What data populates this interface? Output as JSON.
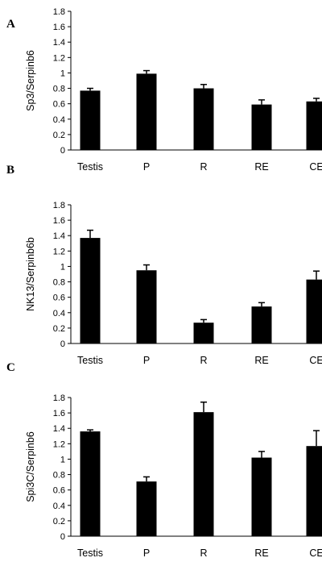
{
  "chart_data": [
    {
      "panel": "A",
      "type": "bar",
      "ylabel": "Sp3/Serpinb6",
      "categories": [
        "Testis",
        "P",
        "R",
        "RE",
        "CE"
      ],
      "values": [
        0.77,
        0.99,
        0.8,
        0.59,
        0.63
      ],
      "errors": [
        0.03,
        0.04,
        0.05,
        0.06,
        0.04
      ],
      "ylim": [
        0,
        1.8
      ],
      "yticks": [
        "0",
        "0.2",
        "0.4",
        "0.6",
        "0.8",
        "1",
        "1.2",
        "1.4",
        "1.6",
        "1.8"
      ],
      "bar_color": "#000000"
    },
    {
      "panel": "B",
      "type": "bar",
      "ylabel": "NK13/Serpinb6b",
      "categories": [
        "Testis",
        "P",
        "R",
        "RE",
        "CE"
      ],
      "values": [
        1.37,
        0.95,
        0.27,
        0.48,
        0.83
      ],
      "errors": [
        0.1,
        0.07,
        0.04,
        0.05,
        0.11
      ],
      "ylim": [
        0,
        1.8
      ],
      "yticks": [
        "0",
        "0.2",
        "0.4",
        "0.6",
        "0.8",
        "1",
        "1.2",
        "1.4",
        "1.6",
        "1.8"
      ],
      "bar_color": "#000000"
    },
    {
      "panel": "C",
      "type": "bar",
      "ylabel": "Spi3C/Serpinb6",
      "categories": [
        "Testis",
        "P",
        "R",
        "RE",
        "CE"
      ],
      "values": [
        1.36,
        0.71,
        1.61,
        1.02,
        1.17
      ],
      "errors": [
        0.02,
        0.06,
        0.13,
        0.08,
        0.2
      ],
      "ylim": [
        0,
        1.8
      ],
      "yticks": [
        "0",
        "0.2",
        "0.4",
        "0.6",
        "0.8",
        "1",
        "1.2",
        "1.4",
        "1.6",
        "1.8"
      ],
      "bar_color": "#000000"
    }
  ]
}
